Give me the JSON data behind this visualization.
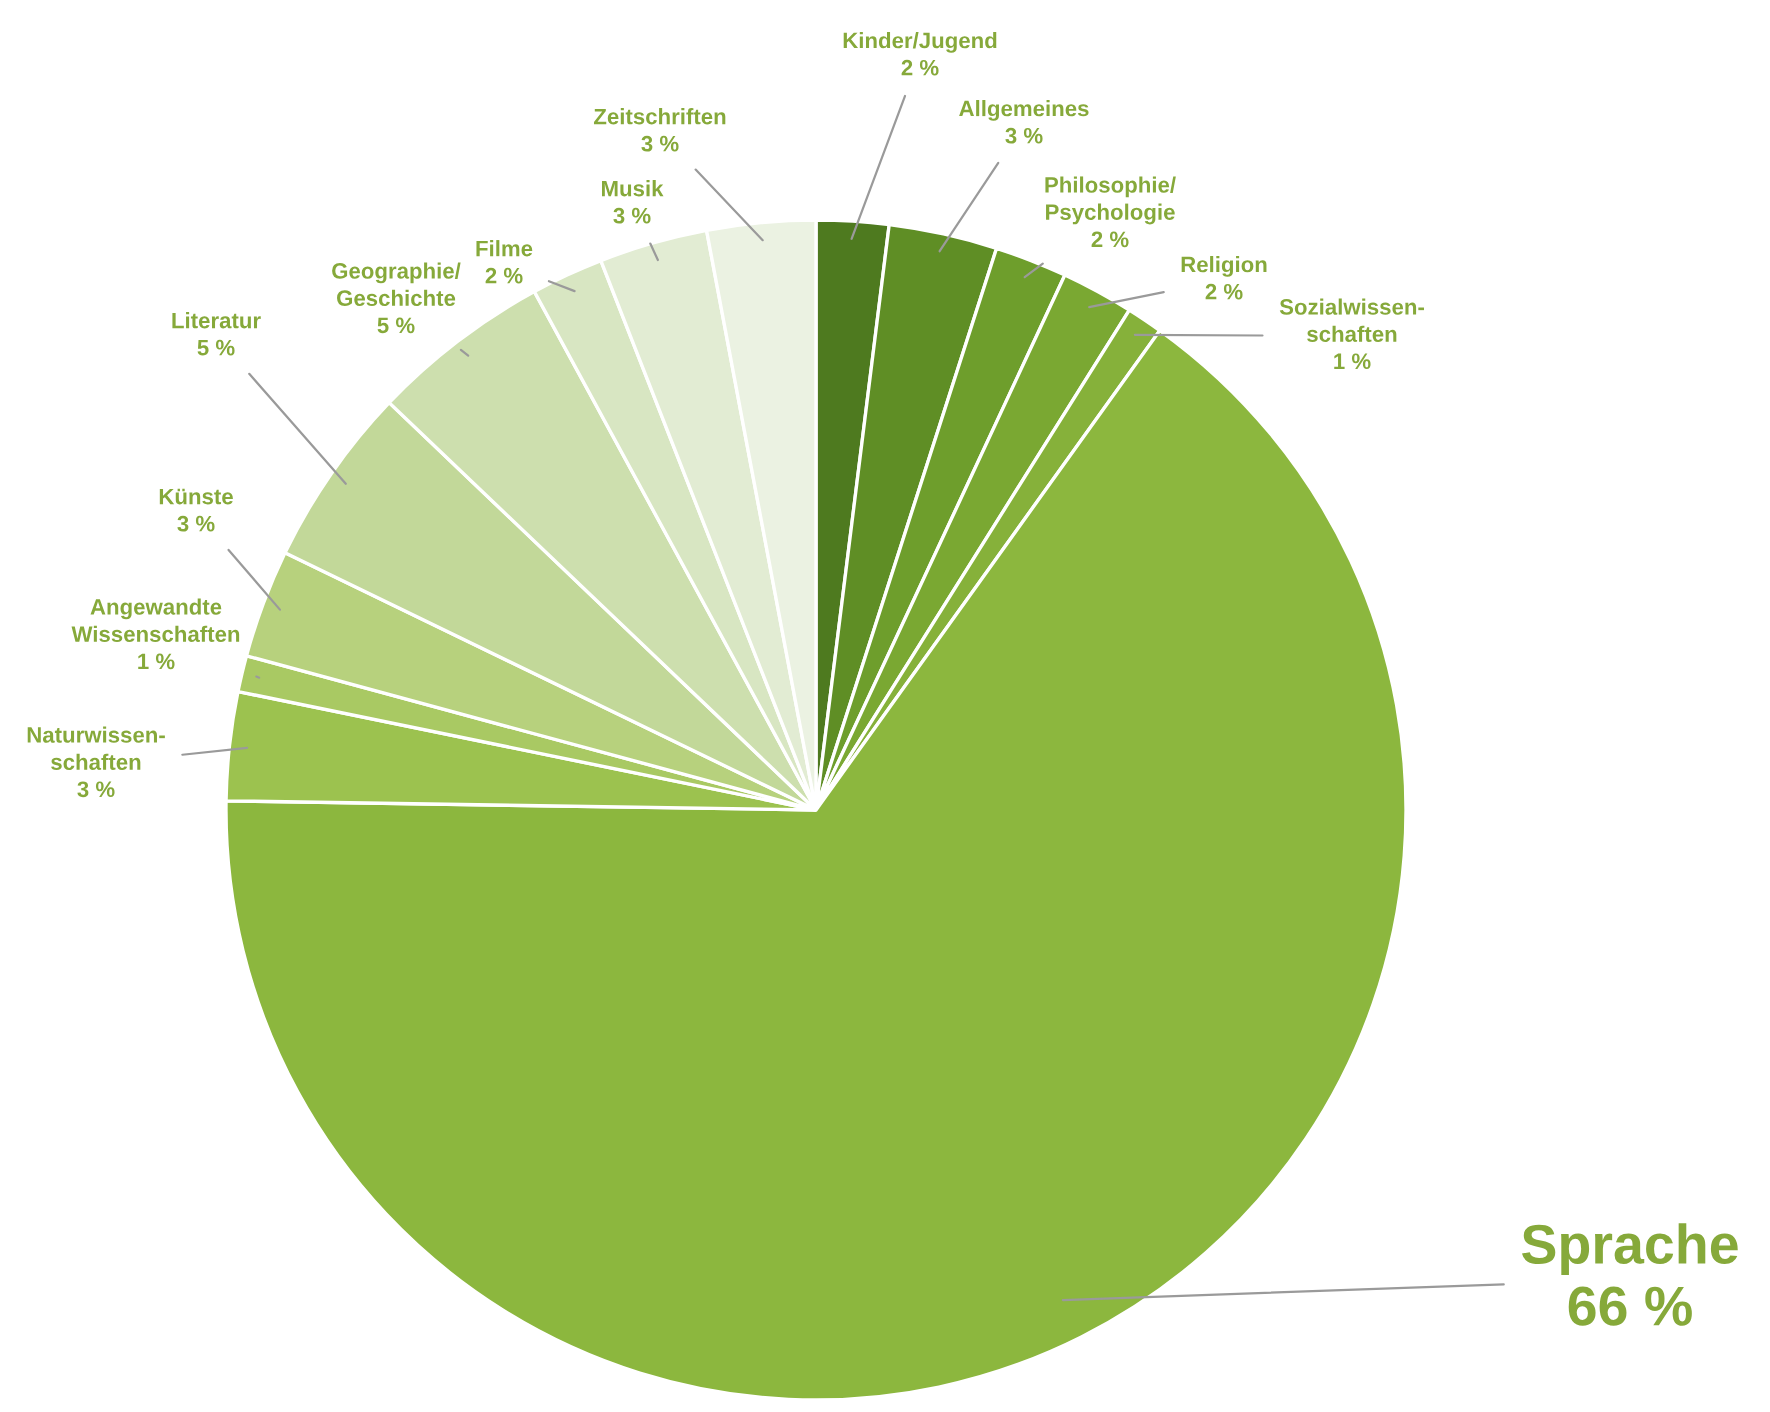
{
  "chart_data": {
    "type": "pie",
    "categories": [
      "Kinder/Jugend",
      "Allgemeines",
      "Philosophie/\nPsychologie",
      "Religion",
      "Sozialwissen-\nschaften",
      "Sprache",
      "Naturwissen-\nschaften",
      "Angewandte\nWissenschaften",
      "Künste",
      "Literatur",
      "Geographie/\nGeschichte",
      "Filme",
      "Musik",
      "Zeitschriften"
    ],
    "values": [
      2,
      3,
      2,
      2,
      1,
      66,
      3,
      1,
      3,
      5,
      5,
      2,
      3,
      3
    ],
    "value_labels": [
      "2 %",
      "3 %",
      "2 %",
      "2 %",
      "1 %",
      "66 %",
      "3 %",
      "1 %",
      "3 %",
      "5 %",
      "5 %",
      "2 %",
      "3 %",
      "3 %"
    ],
    "colors": [
      "#4e7a1f",
      "#5f8e25",
      "#6e9e2c",
      "#7aa832",
      "#86b13a",
      "#8cb73e",
      "#9cc24f",
      "#a9c963",
      "#b7d17d",
      "#c2d899",
      "#cddfae",
      "#d8e6c2",
      "#e2ecd3",
      "#ebf2e2"
    ]
  }
}
